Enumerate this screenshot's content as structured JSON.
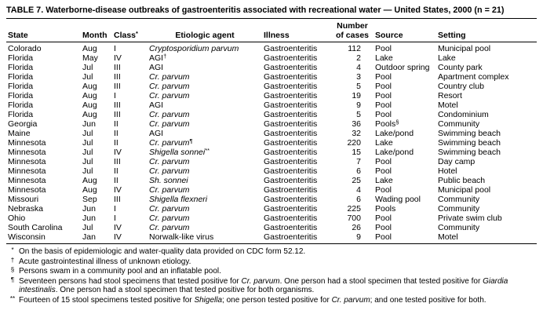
{
  "title": "TABLE 7. Waterborne-disease outbreaks of gastroenteritis associated with recreational water — United States, 2000 (n = 21)",
  "table": {
    "headers": {
      "state": "State",
      "month": "Month",
      "class_label": "Class",
      "class_sup": "*",
      "agent": "Etiologic agent",
      "illness": "Illness",
      "cases_line1": "Number",
      "cases_line2": "of cases",
      "source": "Source",
      "setting": "Setting"
    },
    "rows": [
      {
        "state": "Colorado",
        "month": "Aug",
        "class": "I",
        "agent": "Cryptosporidium parvum",
        "agent_italic": true,
        "agent_sup": "",
        "illness": "Gastroenteritis",
        "cases": "112",
        "source": "Pool",
        "source_sup": "",
        "setting": "Municipal pool"
      },
      {
        "state": "Florida",
        "month": "May",
        "class": "IV",
        "agent": "AGI",
        "agent_italic": false,
        "agent_sup": "†",
        "illness": "Gastroenteritis",
        "cases": "2",
        "source": "Lake",
        "source_sup": "",
        "setting": "Lake"
      },
      {
        "state": "Florida",
        "month": "Jul",
        "class": "III",
        "agent": "AGI",
        "agent_italic": false,
        "agent_sup": "",
        "illness": "Gastroenteritis",
        "cases": "4",
        "source": "Outdoor spring",
        "source_sup": "",
        "setting": "County park"
      },
      {
        "state": "Florida",
        "month": "Jul",
        "class": "III",
        "agent": "Cr. parvum",
        "agent_italic": true,
        "agent_sup": "",
        "illness": "Gastroenteritis",
        "cases": "3",
        "source": "Pool",
        "source_sup": "",
        "setting": "Apartment complex"
      },
      {
        "state": "Florida",
        "month": "Aug",
        "class": "III",
        "agent": "Cr. parvum",
        "agent_italic": true,
        "agent_sup": "",
        "illness": "Gastroenteritis",
        "cases": "5",
        "source": "Pool",
        "source_sup": "",
        "setting": "Country club"
      },
      {
        "state": "Florida",
        "month": "Aug",
        "class": "I",
        "agent": "Cr. parvum",
        "agent_italic": true,
        "agent_sup": "",
        "illness": "Gastroenteritis",
        "cases": "19",
        "source": "Pool",
        "source_sup": "",
        "setting": "Resort"
      },
      {
        "state": "Florida",
        "month": "Aug",
        "class": "III",
        "agent": "AGI",
        "agent_italic": false,
        "agent_sup": "",
        "illness": "Gastroenteritis",
        "cases": "9",
        "source": "Pool",
        "source_sup": "",
        "setting": "Motel"
      },
      {
        "state": "Florida",
        "month": "Aug",
        "class": "III",
        "agent": "Cr. parvum",
        "agent_italic": true,
        "agent_sup": "",
        "illness": "Gastroenteritis",
        "cases": "5",
        "source": "Pool",
        "source_sup": "",
        "setting": "Condominium"
      },
      {
        "state": "Georgia",
        "month": "Jun",
        "class": "II",
        "agent": "Cr. parvum",
        "agent_italic": true,
        "agent_sup": "",
        "illness": "Gastroenteritis",
        "cases": "36",
        "source": "Pools",
        "source_sup": "§",
        "setting": "Community"
      },
      {
        "state": "Maine",
        "month": "Jul",
        "class": "II",
        "agent": "AGI",
        "agent_italic": false,
        "agent_sup": "",
        "illness": "Gastroenteritis",
        "cases": "32",
        "source": "Lake/pond",
        "source_sup": "",
        "setting": "Swimming beach"
      },
      {
        "state": "Minnesota",
        "month": "Jul",
        "class": "II",
        "agent": "Cr. parvum",
        "agent_italic": true,
        "agent_sup": "¶",
        "illness": "Gastroenteritis",
        "cases": "220",
        "source": "Lake",
        "source_sup": "",
        "setting": "Swimming beach"
      },
      {
        "state": "Minnesota",
        "month": "Jul",
        "class": "IV",
        "agent": "Shigella sonnei",
        "agent_italic": true,
        "agent_sup": "**",
        "illness": "Gastroenteritis",
        "cases": "15",
        "source": "Lake/pond",
        "source_sup": "",
        "setting": "Swimming beach"
      },
      {
        "state": "Minnesota",
        "month": "Jul",
        "class": "III",
        "agent": "Cr. parvum",
        "agent_italic": true,
        "agent_sup": "",
        "illness": "Gastroenteritis",
        "cases": "7",
        "source": "Pool",
        "source_sup": "",
        "setting": "Day camp"
      },
      {
        "state": "Minnesota",
        "month": "Jul",
        "class": "II",
        "agent": "Cr. parvum",
        "agent_italic": true,
        "agent_sup": "",
        "illness": "Gastroenteritis",
        "cases": "6",
        "source": "Pool",
        "source_sup": "",
        "setting": "Hotel"
      },
      {
        "state": "Minnesota",
        "month": "Aug",
        "class": "II",
        "agent": "Sh. sonnei",
        "agent_italic": true,
        "agent_sup": "",
        "illness": "Gastroenteritis",
        "cases": "25",
        "source": "Lake",
        "source_sup": "",
        "setting": "Public beach"
      },
      {
        "state": "Minnesota",
        "month": "Aug",
        "class": "IV",
        "agent": "Cr. parvum",
        "agent_italic": true,
        "agent_sup": "",
        "illness": "Gastroenteritis",
        "cases": "4",
        "source": "Pool",
        "source_sup": "",
        "setting": "Municipal pool"
      },
      {
        "state": "Missouri",
        "month": "Sep",
        "class": "III",
        "agent": "Shigella flexneri",
        "agent_italic": true,
        "agent_sup": "",
        "illness": "Gastroenteritis",
        "cases": "6",
        "source": "Wading pool",
        "source_sup": "",
        "setting": "Community"
      },
      {
        "state": "Nebraska",
        "month": "Jun",
        "class": "I",
        "agent": "Cr. parvum",
        "agent_italic": true,
        "agent_sup": "",
        "illness": "Gastroenteritis",
        "cases": "225",
        "source": "Pools",
        "source_sup": "",
        "setting": "Community"
      },
      {
        "state": "Ohio",
        "month": "Jun",
        "class": "I",
        "agent": "Cr. parvum",
        "agent_italic": true,
        "agent_sup": "",
        "illness": "Gastroenteritis",
        "cases": "700",
        "source": "Pool",
        "source_sup": "",
        "setting": "Private swim club"
      },
      {
        "state": "South Carolina",
        "month": "Jul",
        "class": "IV",
        "agent": "Cr. parvum",
        "agent_italic": true,
        "agent_sup": "",
        "illness": "Gastroenteritis",
        "cases": "26",
        "source": "Pool",
        "source_sup": "",
        "setting": "Community"
      },
      {
        "state": "Wisconsin",
        "month": "Jan",
        "class": "IV",
        "agent": "Norwalk-like virus",
        "agent_italic": false,
        "agent_sup": "",
        "illness": "Gastroenteritis",
        "cases": "9",
        "source": "Pool",
        "source_sup": "",
        "setting": "Motel"
      }
    ]
  },
  "footnotes": [
    {
      "marker": "*",
      "segments": [
        {
          "text": "On the basis of epidemiologic and water-quality data provided on CDC form 52.12.",
          "italic": false
        }
      ]
    },
    {
      "marker": "†",
      "segments": [
        {
          "text": "Acute gastrointestinal illness of unknown etiology.",
          "italic": false
        }
      ]
    },
    {
      "marker": "§",
      "segments": [
        {
          "text": "Persons swam in a community pool and an inflatable pool.",
          "italic": false
        }
      ]
    },
    {
      "marker": "¶",
      "segments": [
        {
          "text": "Seventeen persons had stool specimens that tested positive for ",
          "italic": false
        },
        {
          "text": "Cr. parvum",
          "italic": true
        },
        {
          "text": ". One person had a stool specimen that tested positive for ",
          "italic": false
        },
        {
          "text": "Giardia intestinalis",
          "italic": true
        },
        {
          "text": ". One person had a stool specimen that tested positive for both organisms.",
          "italic": false
        }
      ]
    },
    {
      "marker": "**",
      "segments": [
        {
          "text": "Fourteen of 15 stool specimens tested positive for ",
          "italic": false
        },
        {
          "text": "Shigella",
          "italic": true
        },
        {
          "text": "; one person tested positive for ",
          "italic": false
        },
        {
          "text": "Cr. parvum",
          "italic": true
        },
        {
          "text": "; and one tested positive for both.",
          "italic": false
        }
      ]
    }
  ]
}
